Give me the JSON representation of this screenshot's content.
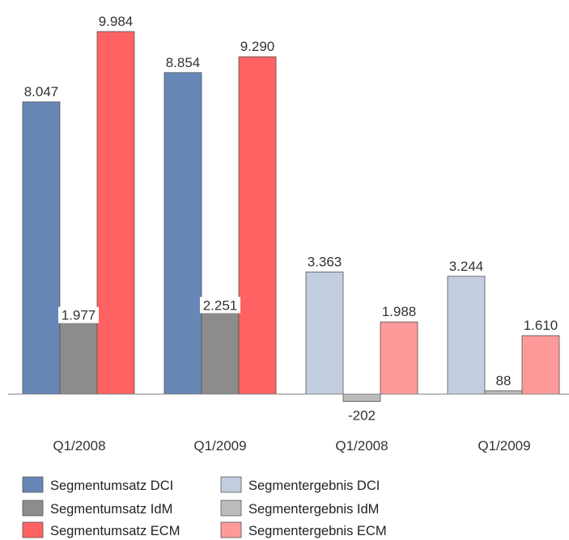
{
  "chart_data": {
    "type": "bar",
    "groups": [
      {
        "label": "Q1/2008",
        "values": [
          8047,
          1977,
          9984
        ],
        "value_labels": [
          "8.047",
          "1.977",
          "9.984"
        ],
        "series_index": [
          0,
          1,
          2
        ]
      },
      {
        "label": "Q1/2009",
        "values": [
          8854,
          2251,
          9290
        ],
        "value_labels": [
          "8.854",
          "2.251",
          "9.290"
        ],
        "series_index": [
          0,
          1,
          2
        ]
      },
      {
        "label": "Q1/2008",
        "values": [
          3363,
          -202,
          1988
        ],
        "value_labels": [
          "3.363",
          "-202",
          "1.988"
        ],
        "series_index": [
          3,
          4,
          5
        ]
      },
      {
        "label": "Q1/2009",
        "values": [
          3244,
          88,
          1610
        ],
        "value_labels": [
          "3.244",
          "88",
          "1.610"
        ],
        "series_index": [
          3,
          4,
          5
        ]
      }
    ],
    "series": [
      {
        "name": "Segmentumsatz DCI",
        "color": "#6787b7"
      },
      {
        "name": "Segmentumsatz IdM",
        "color": "#8c8c8c"
      },
      {
        "name": "Segmentumsatz ECM",
        "color": "#fe6262"
      },
      {
        "name": "Segmentergebnis DCI",
        "color": "#c3cde0"
      },
      {
        "name": "Segmentergebnis IdM",
        "color": "#bcbcbc"
      },
      {
        "name": "Segmentergebnis ECM",
        "color": "#fe9a9a"
      }
    ],
    "legend": {
      "placement": "bottom-left",
      "columns": 2
    },
    "grid": false,
    "axis_baseline_color": "#888888"
  }
}
